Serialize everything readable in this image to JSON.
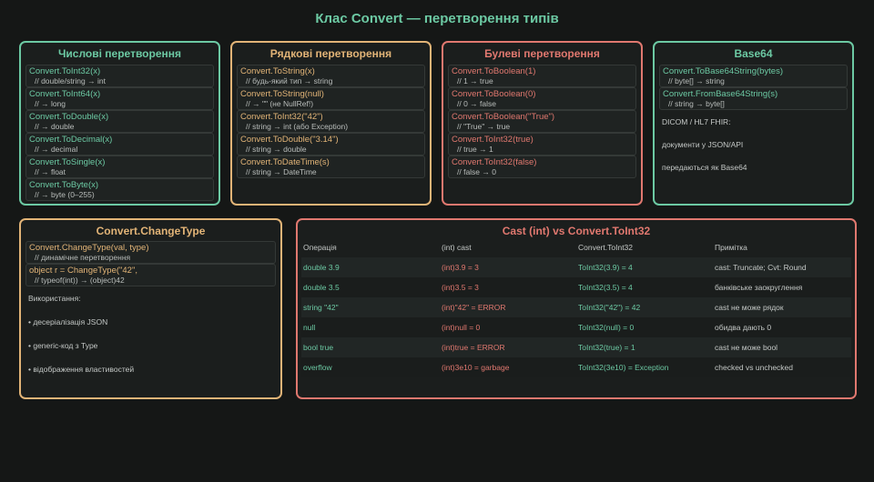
{
  "title": "Клас Convert — перетворення типів",
  "panels": [
    {
      "title": "Числові перетворення",
      "items": [
        {
          "code": "Convert.ToInt32(x)",
          "comment": "// double/string → int"
        },
        {
          "code": "Convert.ToInt64(x)",
          "comment": "// → long"
        },
        {
          "code": "Convert.ToDouble(x)",
          "comment": "// → double"
        },
        {
          "code": "Convert.ToDecimal(x)",
          "comment": "// → decimal"
        },
        {
          "code": "Convert.ToSingle(x)",
          "comment": "// → float"
        },
        {
          "code": "Convert.ToByte(x)",
          "comment": "// → byte (0–255)"
        }
      ],
      "notes": []
    },
    {
      "title": "Рядкові перетворення",
      "items": [
        {
          "code": "Convert.ToString(x)",
          "comment": "// будь-який тип → string"
        },
        {
          "code": "Convert.ToString(null)",
          "comment": "// → \"\" (не NullRef!)"
        },
        {
          "code": "Convert.ToInt32(\"42\")",
          "comment": "// string → int (або Exception)"
        },
        {
          "code": "Convert.ToDouble(\"3.14\")",
          "comment": "// string → double"
        },
        {
          "code": "Convert.ToDateTime(s)",
          "comment": "// string → DateTime"
        }
      ],
      "notes": []
    },
    {
      "title": "Булеві перетворення",
      "items": [
        {
          "code": "Convert.ToBoolean(1)",
          "comment": "// 1 → true"
        },
        {
          "code": "Convert.ToBoolean(0)",
          "comment": "// 0 → false"
        },
        {
          "code": "Convert.ToBoolean(\"True\")",
          "comment": "// \"True\" → true"
        },
        {
          "code": "Convert.ToInt32(true)",
          "comment": "// true → 1"
        },
        {
          "code": "Convert.ToInt32(false)",
          "comment": "// false → 0"
        }
      ],
      "notes": []
    },
    {
      "title": "Base64",
      "items": [
        {
          "code": "Convert.ToBase64String(bytes)",
          "comment": "// byte[] → string"
        },
        {
          "code": "Convert.FromBase64String(s)",
          "comment": "// string → byte[]"
        }
      ],
      "notes": [
        "DICOM / HL7 FHIR:",
        "документи у JSON/API",
        "передаються як Base64"
      ]
    }
  ],
  "change_type": {
    "title": "Convert.ChangeType",
    "items": [
      {
        "code": "Convert.ChangeType(val, type)",
        "comment": "// динамічне перетворення"
      },
      {
        "code": "object r = ChangeType(\"42\",",
        "comment": "// typeof(int)) → (object)42"
      }
    ],
    "notes": [
      "Використання:",
      "• десеріалізація JSON",
      "• generic-код з Type",
      "• відображення властивостей"
    ]
  },
  "cast_table": {
    "title": "Cast (int) vs Convert.ToInt32",
    "header": [
      "Операція",
      "(int) cast",
      "Convert.ToInt32",
      "Примітка"
    ],
    "rows": [
      [
        "double 3.9",
        "(int)3.9 = 3",
        "ToInt32(3.9) = 4",
        "cast: Truncate; Cvt: Round"
      ],
      [
        "double 3.5",
        "(int)3.5 = 3",
        "ToInt32(3.5) = 4",
        "банківське заокруглення"
      ],
      [
        "string \"42\"",
        "(int)\"42\" = ERROR",
        "ToInt32(\"42\") = 42",
        "cast не може рядок"
      ],
      [
        "null",
        "(int)null = 0",
        "ToInt32(null) = 0",
        "обидва дають 0"
      ],
      [
        "bool true",
        "(int)true = ERROR",
        "ToInt32(true) = 1",
        "cast не може bool"
      ],
      [
        "overflow",
        "(int)3e10 = garbage",
        "ToInt32(3e10) = Exception",
        "checked vs unchecked"
      ]
    ]
  }
}
